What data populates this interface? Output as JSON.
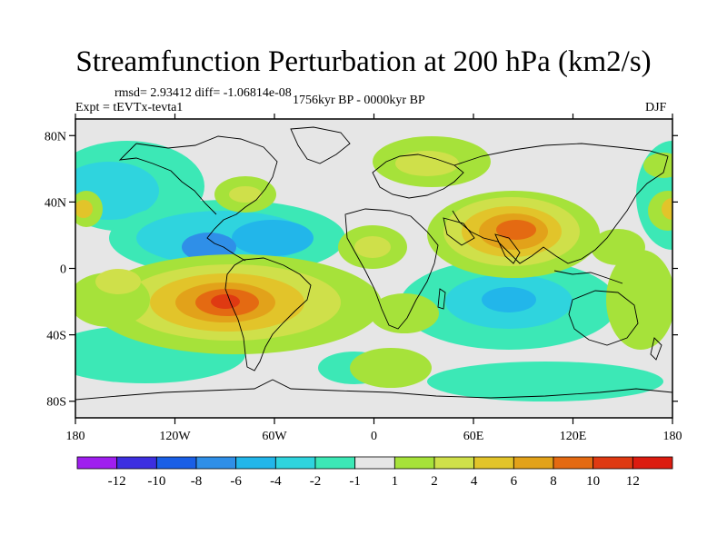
{
  "title": "Streamfunction Perturbation at 200 hPa (km2/s)",
  "stats": "rmsd= 2.93412 diff= -1.06814e-08",
  "experiment": "Expt = tEVTx-tevta1",
  "period": "1756kyr BP - 0000kyr BP",
  "season": "DJF",
  "map": {
    "lon_ticks": [
      "180",
      "120W",
      "60W",
      "0",
      "60E",
      "120E",
      "180"
    ],
    "lat_ticks": [
      "80N",
      "40N",
      "0",
      "40S",
      "80S"
    ],
    "lon_values": [
      -180,
      -120,
      -60,
      0,
      60,
      120,
      180
    ],
    "lat_values": [
      80,
      40,
      0,
      -40,
      -80
    ],
    "extent": {
      "lon": [
        -180,
        180
      ],
      "lat": [
        -90,
        90
      ]
    }
  },
  "colorbar": {
    "labels": [
      "-12",
      "-10",
      "-8",
      "-6",
      "-4",
      "-2",
      "-1",
      "1",
      "2",
      "4",
      "6",
      "8",
      "10",
      "12"
    ],
    "colors": [
      "#9f1fef",
      "#3d2fe0",
      "#1a5fe6",
      "#2f8fe8",
      "#22b6ea",
      "#2fd4de",
      "#3ce8b6",
      "#e6e6e6",
      "#a6e23a",
      "#cfe04a",
      "#e2c42a",
      "#e2a21a",
      "#e46a12",
      "#df3a12",
      "#dc1c10"
    ]
  },
  "field_colors": {
    "background": "#e6e6e6",
    "neg_light": "#3ce8b6",
    "neg_mid": "#2fd4de",
    "neg_strong": "#22b6ea",
    "neg_deep": "#2f8fe8",
    "pos_light": "#a6e23a",
    "pos_mid": "#cfe04a",
    "pos_strong": "#e2c42a",
    "pos_deep": "#e2a21a",
    "pos_hot": "#e46a12",
    "pos_max": "#df3a12"
  }
}
